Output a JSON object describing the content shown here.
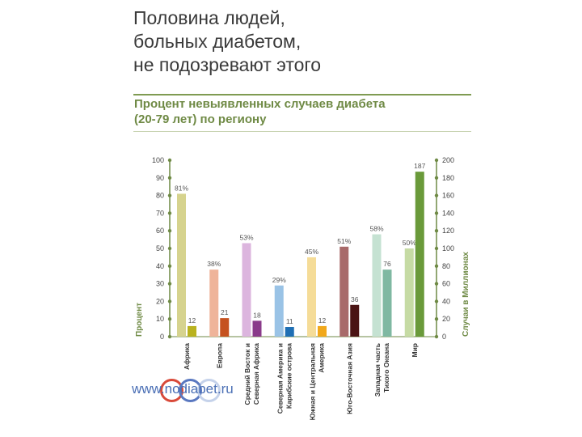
{
  "headline": [
    "Половина людей,",
    "больных диабетом,",
    "не подозревают этого"
  ],
  "subtitle": [
    "Процент невыявленных случаев диабета",
    "(20-79 лет) по региону"
  ],
  "logo_text": "www.nodiabet.ru",
  "chart_data": {
    "type": "bar",
    "title": "Процент невыявленных случаев диабета (20-79 лет) по региону",
    "ylabel_left": "Процент",
    "ylabel_right": "Случаи в Миллионах",
    "ylim_left": [
      0,
      100
    ],
    "ylim_right": [
      0,
      200
    ],
    "yticks_left": [
      0,
      10,
      20,
      30,
      40,
      50,
      60,
      70,
      80,
      90,
      100
    ],
    "yticks_right": [
      0,
      20,
      40,
      60,
      80,
      100,
      120,
      140,
      160,
      180,
      200
    ],
    "categories": [
      {
        "label": [
          "Африка"
        ]
      },
      {
        "label": [
          "Европа"
        ]
      },
      {
        "label": [
          "Средний Восток и",
          "Северная Африка"
        ]
      },
      {
        "label": [
          "Северная Америка и",
          "Карибские острова"
        ]
      },
      {
        "label": [
          "Южная и Центральная",
          "Америка"
        ]
      },
      {
        "label": [
          "Юго-Восточная Азия"
        ]
      },
      {
        "label": [
          "Западная часть",
          "Тихого Океана"
        ]
      },
      {
        "label": [
          "Мир"
        ]
      }
    ],
    "series": [
      {
        "axis": "left",
        "values": [
          81,
          38,
          53,
          29,
          45,
          51,
          58,
          50
        ],
        "labels": [
          "81%",
          "38%",
          "53%",
          "29%",
          "45%",
          "51%",
          "58%",
          "50%"
        ],
        "colors": [
          "#d6d38e",
          "#efb49a",
          "#dcb5de",
          "#9ac3e6",
          "#f5dc98",
          "#a86a6a",
          "#c5e2d2",
          "#c6dba4"
        ]
      },
      {
        "axis": "right",
        "values": [
          12,
          21,
          18,
          11,
          12,
          36,
          76,
          187
        ],
        "labels": [
          "12",
          "21",
          "18",
          "11",
          "12",
          "36",
          "76",
          "187"
        ],
        "colors": [
          "#b9b21f",
          "#c5521f",
          "#8a3a8a",
          "#1f6fb4",
          "#f1a81b",
          "#4a1414",
          "#7fb8a2",
          "#6a9a3a"
        ]
      }
    ],
    "colors": {
      "axis": "#6f8a45",
      "tick_text": "#444444",
      "value_text": "#555555"
    }
  }
}
